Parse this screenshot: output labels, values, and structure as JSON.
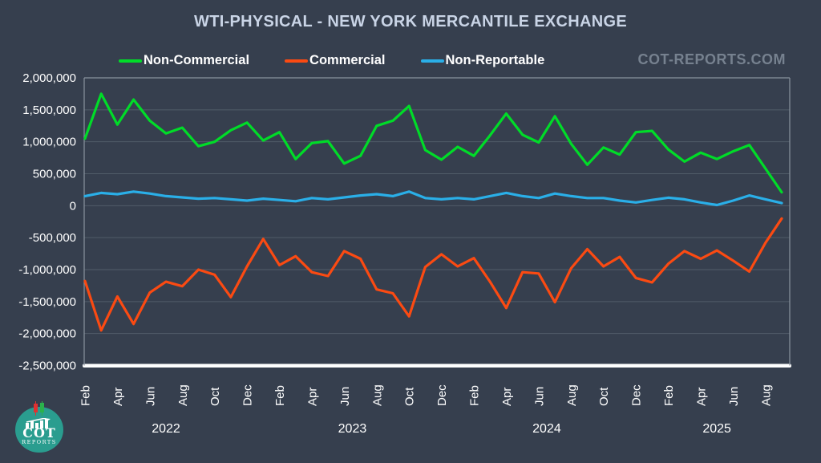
{
  "title": "WTI-PHYSICAL - NEW YORK MERCANTILE EXCHANGE",
  "watermark": "COT-REPORTS.COM",
  "legend": [
    {
      "label": "Non-Commercial",
      "color": "#00DC28"
    },
    {
      "label": "Commercial",
      "color": "#FB4A12"
    },
    {
      "label": "Non-Reportable",
      "color": "#2AAFE8"
    }
  ],
  "logo": {
    "line1": "COT",
    "line2": "REPORTS"
  },
  "colors": {
    "background": "#363F4E",
    "title_text": "#C9D4E6",
    "axis_text": "#FFFFFF",
    "watermark_text": "#76818F",
    "gridline": "#515C69",
    "axis_border": "#8A939F",
    "bottom_axis": "#FFFFFF",
    "logo_teal": "#2A9D8F",
    "candle_red": "#E03131",
    "candle_green": "#2BB24C"
  },
  "chart_data": {
    "type": "line",
    "title": "WTI-PHYSICAL - NEW YORK MERCANTILE EXCHANGE",
    "xlabel": "",
    "ylabel": "",
    "ylim": [
      -2500000,
      2000000
    ],
    "grid": "horizontal",
    "legend_position": "top",
    "x": [
      "Feb 2022",
      "Mar 2022",
      "Apr 2022",
      "May 2022",
      "Jun 2022",
      "Jul 2022",
      "Aug 2022",
      "Sep 2022",
      "Oct 2022",
      "Nov 2022",
      "Dec 2022",
      "Jan 2023",
      "Feb 2023",
      "Mar 2023",
      "Apr 2023",
      "May 2023",
      "Jun 2023",
      "Jul 2023",
      "Aug 2023",
      "Sep 2023",
      "Oct 2023",
      "Nov 2023",
      "Dec 2023",
      "Jan 2024",
      "Feb 2024",
      "Mar 2024",
      "Apr 2024",
      "May 2024",
      "Jun 2024",
      "Jul 2024",
      "Aug 2024",
      "Sep 2024",
      "Oct 2024",
      "Nov 2024",
      "Dec 2024",
      "Jan 2025",
      "Feb 2025",
      "Mar 2025",
      "Apr 2025",
      "May 2025",
      "Jun 2025",
      "Jul 2025",
      "Aug 2025",
      "Sep 2025"
    ],
    "x_tick_every": 2,
    "year_labels": [
      {
        "label": "2022",
        "center_index": 5
      },
      {
        "label": "2023",
        "center_index": 16.5
      },
      {
        "label": "2024",
        "center_index": 28.5
      },
      {
        "label": "2025",
        "center_index": 39
      }
    ],
    "y_ticks": [
      {
        "value": 2000000,
        "label": "2,000,000"
      },
      {
        "value": 1500000,
        "label": "1,500,000"
      },
      {
        "value": 1000000,
        "label": "1,000,000"
      },
      {
        "value": 500000,
        "label": "500,000"
      },
      {
        "value": 0,
        "label": "0"
      },
      {
        "value": -500000,
        "label": "-500,000"
      },
      {
        "value": -1000000,
        "label": "-1,000,000"
      },
      {
        "value": -1500000,
        "label": "-1,500,000"
      },
      {
        "value": -2000000,
        "label": "-2,000,000"
      },
      {
        "value": -2500000,
        "label": "-2,500,000"
      }
    ],
    "series": [
      {
        "name": "Non-Commercial",
        "color": "#00DC28",
        "values": [
          1050000,
          1750000,
          1270000,
          1660000,
          1330000,
          1130000,
          1220000,
          930000,
          1000000,
          1180000,
          1300000,
          1020000,
          1150000,
          730000,
          980000,
          1010000,
          660000,
          780000,
          1250000,
          1330000,
          1560000,
          870000,
          720000,
          920000,
          780000,
          1100000,
          1440000,
          1110000,
          990000,
          1400000,
          970000,
          640000,
          910000,
          800000,
          1150000,
          1170000,
          880000,
          690000,
          830000,
          730000,
          850000,
          950000,
          580000,
          210000
        ]
      },
      {
        "name": "Commercial",
        "color": "#FB4A12",
        "values": [
          -1180000,
          -1950000,
          -1420000,
          -1850000,
          -1360000,
          -1190000,
          -1260000,
          -1000000,
          -1080000,
          -1430000,
          -950000,
          -520000,
          -930000,
          -790000,
          -1040000,
          -1100000,
          -710000,
          -830000,
          -1310000,
          -1370000,
          -1730000,
          -960000,
          -760000,
          -950000,
          -820000,
          -1190000,
          -1600000,
          -1040000,
          -1060000,
          -1510000,
          -980000,
          -680000,
          -950000,
          -800000,
          -1130000,
          -1200000,
          -910000,
          -710000,
          -830000,
          -700000,
          -860000,
          -1030000,
          -580000,
          -200000
        ]
      },
      {
        "name": "Non-Reportable",
        "color": "#2AAFE8",
        "values": [
          150000,
          200000,
          180000,
          220000,
          190000,
          150000,
          130000,
          110000,
          120000,
          100000,
          80000,
          110000,
          90000,
          70000,
          120000,
          100000,
          130000,
          160000,
          180000,
          150000,
          220000,
          120000,
          100000,
          120000,
          100000,
          150000,
          200000,
          150000,
          120000,
          190000,
          150000,
          120000,
          120000,
          80000,
          50000,
          90000,
          125000,
          100000,
          50000,
          10000,
          80000,
          160000,
          100000,
          40000
        ]
      }
    ]
  }
}
